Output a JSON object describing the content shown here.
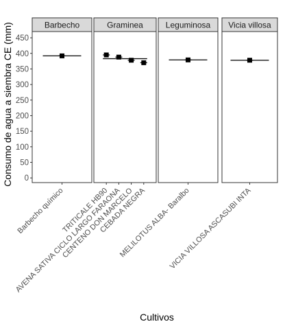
{
  "chart_data": {
    "type": "scatter",
    "xlabel": "Cultivos",
    "ylabel": "Consumo de agua a siembra CE (mm)",
    "ylim": [
      -15,
      470
    ],
    "yticks": [
      0,
      50,
      100,
      150,
      200,
      250,
      300,
      350,
      400,
      450
    ],
    "grid": false,
    "marker": "square",
    "colors": {
      "panel_border": "#333333",
      "strip_fill": "#d9d9d9",
      "point": "#000000",
      "tick_text": "#4d4d4d"
    },
    "facets": [
      {
        "name": "Barbecho",
        "categories": [
          "Barbecho químico"
        ],
        "values": [
          392
        ],
        "mean": 392
      },
      {
        "name": "Graminea",
        "categories": [
          "TRITICALE HB90",
          "AVENA SATIVA CICLO LARGO FARAONA",
          "CENTENO DON MARCELO",
          "CEBADA NEGRA"
        ],
        "values": [
          395,
          388,
          378,
          370
        ],
        "mean": 383
      },
      {
        "name": "Leguminosa",
        "categories": [
          "MELILOTUS ALBA- Baralbo"
        ],
        "values": [
          379
        ],
        "mean": 379
      },
      {
        "name": "Vicia villosa",
        "categories": [
          "VICIA VILLOSA ASCASUBI INTA"
        ],
        "values": [
          378
        ],
        "mean": 378
      }
    ]
  }
}
